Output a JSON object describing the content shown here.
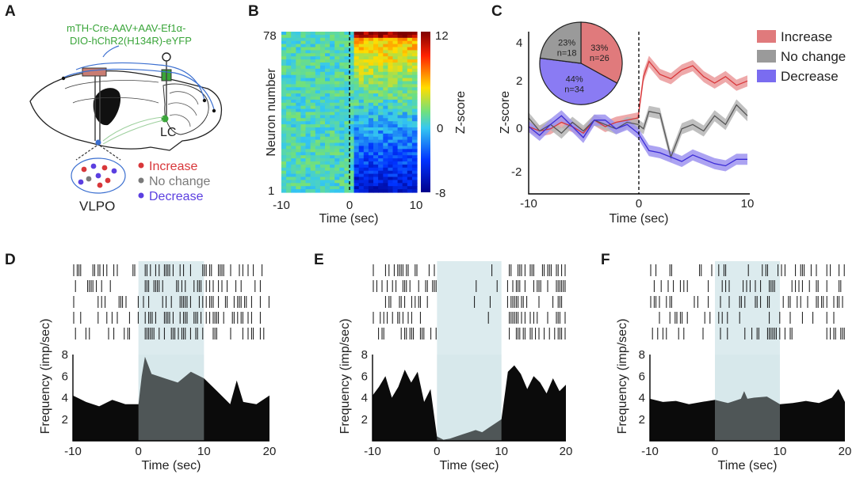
{
  "panels": {
    "A": {
      "label": "A",
      "virus_line1": "mTH-Cre-AAV+AAV-Ef1α-",
      "virus_line2": "DIO-hChR2(H134R)-eYFP",
      "lc_label": "LC",
      "vlpo_label": "VLPO",
      "legend": [
        {
          "text": "Increase",
          "color": "#d8373a"
        },
        {
          "text": "No change",
          "color": "#7a7a7a"
        },
        {
          "text": "Decrease",
          "color": "#5b3fe0"
        }
      ]
    },
    "B": {
      "label": "B",
      "ylabel": "Neuron number",
      "xlabel": "Time (sec)",
      "y_top": "78",
      "y_bottom": "1",
      "x_ticks": [
        "-10",
        "0",
        "10"
      ],
      "colorbar_label": "Z-score",
      "colorbar_ticks": [
        "12",
        "0",
        "-8"
      ]
    },
    "C": {
      "label": "C",
      "ylabel": "Z-score",
      "xlabel": "Time (sec)",
      "x_ticks": [
        "-10",
        "0",
        "10"
      ],
      "y_ticks": [
        "4",
        "2",
        "0",
        "-2"
      ],
      "legend": [
        {
          "text": "Increase",
          "color": "#e07a7c"
        },
        {
          "text": "No change",
          "color": "#9a9a9a"
        },
        {
          "text": "Decrease",
          "color": "#7a6cf0"
        }
      ]
    },
    "D": {
      "label": "D",
      "ylabel": "Frequency (imp/sec)",
      "xlabel": "Time (sec)"
    },
    "E": {
      "label": "E",
      "ylabel": "Frequency (imp/sec)",
      "xlabel": "Time (sec)"
    },
    "F": {
      "label": "F",
      "ylabel": "Frequency (imp/sec)",
      "xlabel": "Time (sec)"
    },
    "psth_x_ticks": [
      "-10",
      "0",
      "10",
      "20"
    ],
    "psth_y_ticks": [
      "8",
      "6",
      "4",
      "2"
    ]
  },
  "chart_data": [
    {
      "id": "C-pie",
      "type": "pie",
      "labels": [
        "Increase",
        "Decrease",
        "No change"
      ],
      "values": [
        33,
        44,
        23
      ],
      "slice_texts": [
        [
          "33%",
          "n=26"
        ],
        [
          "44%",
          "n=34"
        ],
        [
          "23%",
          "n=18"
        ]
      ],
      "colors": [
        "#e07a7c",
        "#8a7bf3",
        "#9a9a9a"
      ]
    },
    {
      "id": "C-lines",
      "type": "line",
      "xlabel": "Time (sec)",
      "ylabel": "Z-score",
      "xlim": [
        -10,
        10
      ],
      "ylim": [
        -3,
        4.3
      ],
      "x": [
        -10,
        -9,
        -8,
        -7,
        -6,
        -5,
        -4,
        -3,
        -2,
        -1,
        0,
        0.5,
        1,
        2,
        3,
        4,
        5,
        6,
        7,
        8,
        9,
        10
      ],
      "series": [
        {
          "name": "Increase",
          "color": "#d8373a",
          "band": "#eb9a9b",
          "values": [
            0,
            -0.2,
            -0.1,
            0.2,
            0,
            -0.3,
            0.3,
            0,
            0.2,
            0.3,
            0.4,
            2.3,
            3.0,
            2.4,
            2.2,
            2.6,
            2.8,
            2.3,
            2.0,
            2.3,
            1.9,
            2.1
          ]
        },
        {
          "name": "No change",
          "color": "#555555",
          "band": "#b5b5b5",
          "values": [
            0.4,
            -0.2,
            0.1,
            -0.3,
            0.2,
            -0.2,
            0.3,
            0.1,
            -0.1,
            0.2,
            0.1,
            -0.1,
            0.7,
            0.6,
            -1.4,
            -0.1,
            0.1,
            -0.2,
            0.5,
            0.1,
            1.0,
            0.5
          ]
        },
        {
          "name": "Decrease",
          "color": "#3b2bd6",
          "band": "#9e93f0",
          "values": [
            0,
            -0.4,
            0.1,
            0.5,
            0,
            -0.5,
            0.3,
            0.3,
            -0.1,
            0.1,
            -0.3,
            -0.7,
            -1.1,
            -1.2,
            -1.4,
            -1.6,
            -1.3,
            -1.5,
            -1.7,
            -1.8,
            -1.5,
            -1.5
          ]
        }
      ]
    },
    {
      "id": "D-psth",
      "type": "area",
      "xlabel": "Time (sec)",
      "ylabel": "Frequency (imp/sec)",
      "xlim": [
        -10,
        20
      ],
      "ylim": [
        0,
        8
      ],
      "stim_window": [
        0,
        10
      ],
      "x": [
        -10,
        -8,
        -6,
        -4,
        -2,
        0,
        0.5,
        1,
        2,
        4,
        6,
        8,
        10,
        12,
        14,
        15,
        16,
        18,
        20
      ],
      "values": [
        4.2,
        3.6,
        3.2,
        3.8,
        3.4,
        3.4,
        6.0,
        7.8,
        6.2,
        5.8,
        5.4,
        6.4,
        5.8,
        4.6,
        3.4,
        5.6,
        3.6,
        3.4,
        4.2
      ]
    },
    {
      "id": "E-psth",
      "type": "area",
      "xlabel": "Time (sec)",
      "ylabel": "Frequency (imp/sec)",
      "xlim": [
        -10,
        20
      ],
      "ylim": [
        0,
        8
      ],
      "stim_window": [
        0,
        10
      ],
      "x": [
        -10,
        -9,
        -8,
        -7,
        -6,
        -5,
        -4,
        -3,
        -2,
        -1,
        0,
        1,
        2,
        3,
        4,
        5,
        6,
        7,
        8,
        9,
        10,
        11,
        12,
        13,
        14,
        15,
        16,
        17,
        18,
        19,
        20
      ],
      "values": [
        4.2,
        5.0,
        6.0,
        4.0,
        5.0,
        6.6,
        5.4,
        6.4,
        3.6,
        4.8,
        0.4,
        0.1,
        0.2,
        0.4,
        0.6,
        0.8,
        1.0,
        0.8,
        1.2,
        1.6,
        2.0,
        6.4,
        7.0,
        6.2,
        4.8,
        6.0,
        5.4,
        4.4,
        5.8,
        4.6,
        5.2
      ]
    },
    {
      "id": "F-psth",
      "type": "area",
      "xlabel": "Time (sec)",
      "ylabel": "Frequency (imp/sec)",
      "xlim": [
        -10,
        20
      ],
      "ylim": [
        0,
        8
      ],
      "stim_window": [
        0,
        10
      ],
      "x": [
        -10,
        -8,
        -6,
        -4,
        -2,
        0,
        2,
        4,
        4.5,
        5,
        6,
        8,
        10,
        12,
        14,
        16,
        18,
        19,
        20
      ],
      "values": [
        3.9,
        3.6,
        3.7,
        3.4,
        3.6,
        3.8,
        3.5,
        3.9,
        4.6,
        3.9,
        4.0,
        4.1,
        3.4,
        3.5,
        3.7,
        3.5,
        4.0,
        4.8,
        3.6
      ]
    }
  ]
}
